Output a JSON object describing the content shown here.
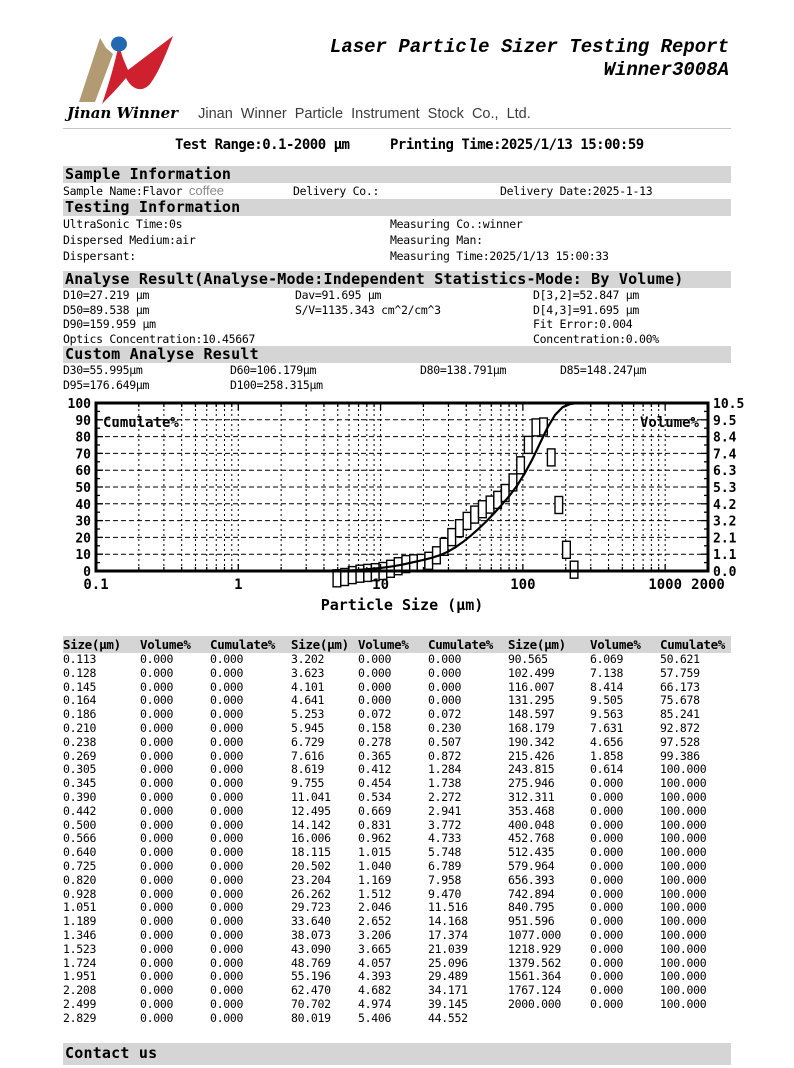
{
  "header": {
    "title_line1": "Laser Particle Sizer Testing Report",
    "title_line2": "Winner3008A",
    "logo_caption": "Jinan Winner",
    "company": "Jinan Winner Particle Instrument Stock Co., Ltd.",
    "logo_colors": {
      "blue": "#2268b2",
      "red": "#cf2030",
      "tan": "#b29b72"
    }
  },
  "meta": {
    "test_range": "Test Range:0.1-2000 μm",
    "printing_time": "Printing Time:2025/1/13 15:00:59"
  },
  "sample_info": {
    "heading": "Sample Information",
    "sample_name_label": "Sample Name:Flavor",
    "sample_name_value": "coffee",
    "delivery_co": "Delivery Co.:",
    "delivery_date": "Delivery Date:2025-1-13"
  },
  "testing_info": {
    "heading": "Testing Information",
    "left": [
      "UltraSonic Time:0s",
      "Dispersed Medium:air",
      "Dispersant:"
    ],
    "right": [
      "Measuring Co.:winner",
      "Measuring Man:",
      "Measuring Time:2025/1/13 15:00:33"
    ]
  },
  "analyse_result": {
    "heading": "Analyse Result(Analyse-Mode:Independent  Statistics-Mode: By Volume)",
    "rows": [
      [
        "D10=27.219 μm",
        "Dav=91.695 μm",
        "D[3,2]=52.847 μm"
      ],
      [
        "D50=89.538 μm",
        "S/V=1135.343 cm^2/cm^3",
        "D[4,3]=91.695 μm"
      ],
      [
        "D90=159.959 μm",
        "",
        "Fit Error:0.004"
      ],
      [
        "Optics Concentration:10.45667",
        "",
        "Concentration:0.00%"
      ]
    ]
  },
  "custom_result": {
    "heading": "Custom Analyse Result",
    "rows": [
      [
        "D30=55.995μm",
        "D60=106.179μm",
        "D80=138.791μm",
        "D85=148.247μm"
      ],
      [
        "D95=176.649μm",
        "D100=258.315μm",
        "",
        ""
      ]
    ]
  },
  "chart_data": {
    "type": "bar",
    "title": "",
    "xlabel": "Particle Size (μm)",
    "x_scale": "log",
    "x_range": [
      0.1,
      2000
    ],
    "x_tick_labels": [
      "0.1",
      "1",
      "10",
      "100",
      "1000",
      "2000"
    ],
    "grid": "dashed",
    "left_axis": {
      "label": "Cumulate%",
      "range": [
        0,
        100
      ],
      "ticks": [
        0,
        10,
        20,
        30,
        40,
        50,
        60,
        70,
        80,
        90,
        100
      ]
    },
    "right_axis": {
      "label": "Volume%",
      "range": [
        0,
        10.5
      ],
      "tick_labels": [
        "10.5",
        "9.5",
        "8.4",
        "7.4",
        "6.3",
        "5.3",
        "4.2",
        "3.2",
        "2.1",
        "1.1",
        "0.0"
      ]
    },
    "x": [
      0.113,
      0.128,
      0.145,
      0.164,
      0.186,
      0.21,
      0.238,
      0.269,
      0.305,
      0.345,
      0.39,
      0.442,
      0.5,
      0.566,
      0.64,
      0.725,
      0.82,
      0.928,
      1.051,
      1.189,
      1.346,
      1.523,
      1.724,
      1.951,
      2.208,
      2.499,
      2.829,
      3.202,
      3.623,
      4.101,
      4.641,
      5.253,
      5.945,
      6.729,
      7.616,
      8.619,
      9.755,
      11.041,
      12.495,
      14.142,
      16.006,
      18.115,
      20.502,
      23.204,
      26.262,
      29.723,
      33.64,
      38.073,
      43.09,
      48.769,
      55.196,
      62.47,
      70.702,
      80.019,
      90.565,
      102.499,
      116.007,
      131.295,
      148.597,
      168.179,
      190.342,
      215.426,
      243.815,
      275.946,
      312.311,
      353.468,
      400.048,
      452.768,
      512.435,
      579.964,
      656.393,
      742.894,
      840.795,
      951.596,
      1077.0,
      1218.929,
      1379.562,
      1561.364,
      1767.124,
      2000.0
    ],
    "series": [
      {
        "name": "Volume%",
        "type": "bar",
        "axis": "right",
        "values": [
          0,
          0,
          0,
          0,
          0,
          0,
          0,
          0,
          0,
          0,
          0,
          0,
          0,
          0,
          0,
          0,
          0,
          0,
          0,
          0,
          0,
          0,
          0,
          0,
          0,
          0,
          0,
          0,
          0,
          0,
          0,
          0.072,
          0.158,
          0.278,
          0.365,
          0.412,
          0.454,
          0.534,
          0.669,
          0.831,
          0.962,
          1.015,
          1.04,
          1.169,
          1.512,
          2.046,
          2.652,
          3.206,
          3.665,
          4.057,
          4.393,
          4.682,
          4.974,
          5.406,
          6.069,
          7.138,
          8.414,
          9.505,
          9.563,
          7.631,
          4.656,
          1.858,
          0.614,
          0,
          0,
          0,
          0,
          0,
          0,
          0,
          0,
          0,
          0,
          0,
          0,
          0,
          0,
          0,
          0,
          0
        ]
      },
      {
        "name": "Cumulate%",
        "type": "line",
        "axis": "left",
        "values": [
          0,
          0,
          0,
          0,
          0,
          0,
          0,
          0,
          0,
          0,
          0,
          0,
          0,
          0,
          0,
          0,
          0,
          0,
          0,
          0,
          0,
          0,
          0,
          0,
          0,
          0,
          0,
          0,
          0,
          0,
          0,
          0.072,
          0.23,
          0.507,
          0.872,
          1.284,
          1.738,
          2.272,
          2.941,
          3.772,
          4.733,
          5.748,
          6.789,
          7.958,
          9.47,
          11.516,
          14.168,
          17.374,
          21.039,
          25.096,
          29.489,
          34.171,
          39.145,
          44.552,
          50.621,
          57.759,
          66.173,
          75.678,
          85.241,
          92.872,
          97.528,
          99.386,
          100,
          100,
          100,
          100,
          100,
          100,
          100,
          100,
          100,
          100,
          100,
          100,
          100,
          100,
          100,
          100,
          100,
          100
        ]
      }
    ]
  },
  "table": {
    "headers": [
      "Size(μm)",
      "Volume%",
      "Cumulate%",
      "Size(μm)",
      "Volume%",
      "Cumulate%",
      "Size(μm)",
      "Volume%",
      "Cumulate%"
    ],
    "groups": [
      {
        "rows": [
          [
            "0.113",
            "0.000",
            "0.000"
          ],
          [
            "0.128",
            "0.000",
            "0.000"
          ],
          [
            "0.145",
            "0.000",
            "0.000"
          ],
          [
            "0.164",
            "0.000",
            "0.000"
          ],
          [
            "0.186",
            "0.000",
            "0.000"
          ],
          [
            "0.210",
            "0.000",
            "0.000"
          ],
          [
            "0.238",
            "0.000",
            "0.000"
          ],
          [
            "0.269",
            "0.000",
            "0.000"
          ],
          [
            "0.305",
            "0.000",
            "0.000"
          ],
          [
            "0.345",
            "0.000",
            "0.000"
          ],
          [
            "0.390",
            "0.000",
            "0.000"
          ],
          [
            "0.442",
            "0.000",
            "0.000"
          ],
          [
            "0.500",
            "0.000",
            "0.000"
          ],
          [
            "0.566",
            "0.000",
            "0.000"
          ],
          [
            "0.640",
            "0.000",
            "0.000"
          ],
          [
            "0.725",
            "0.000",
            "0.000"
          ],
          [
            "0.820",
            "0.000",
            "0.000"
          ],
          [
            "0.928",
            "0.000",
            "0.000"
          ],
          [
            "1.051",
            "0.000",
            "0.000"
          ],
          [
            "1.189",
            "0.000",
            "0.000"
          ],
          [
            "1.346",
            "0.000",
            "0.000"
          ],
          [
            "1.523",
            "0.000",
            "0.000"
          ],
          [
            "1.724",
            "0.000",
            "0.000"
          ],
          [
            "1.951",
            "0.000",
            "0.000"
          ],
          [
            "2.208",
            "0.000",
            "0.000"
          ],
          [
            "2.499",
            "0.000",
            "0.000"
          ],
          [
            "2.829",
            "0.000",
            "0.000"
          ]
        ]
      },
      {
        "rows": [
          [
            "3.202",
            "0.000",
            "0.000"
          ],
          [
            "3.623",
            "0.000",
            "0.000"
          ],
          [
            "4.101",
            "0.000",
            "0.000"
          ],
          [
            "4.641",
            "0.000",
            "0.000"
          ],
          [
            "5.253",
            "0.072",
            "0.072"
          ],
          [
            "5.945",
            "0.158",
            "0.230"
          ],
          [
            "6.729",
            "0.278",
            "0.507"
          ],
          [
            "7.616",
            "0.365",
            "0.872"
          ],
          [
            "8.619",
            "0.412",
            "1.284"
          ],
          [
            "9.755",
            "0.454",
            "1.738"
          ],
          [
            "11.041",
            "0.534",
            "2.272"
          ],
          [
            "12.495",
            "0.669",
            "2.941"
          ],
          [
            "14.142",
            "0.831",
            "3.772"
          ],
          [
            "16.006",
            "0.962",
            "4.733"
          ],
          [
            "18.115",
            "1.015",
            "5.748"
          ],
          [
            "20.502",
            "1.040",
            "6.789"
          ],
          [
            "23.204",
            "1.169",
            "7.958"
          ],
          [
            "26.262",
            "1.512",
            "9.470"
          ],
          [
            "29.723",
            "2.046",
            "11.516"
          ],
          [
            "33.640",
            "2.652",
            "14.168"
          ],
          [
            "38.073",
            "3.206",
            "17.374"
          ],
          [
            "43.090",
            "3.665",
            "21.039"
          ],
          [
            "48.769",
            "4.057",
            "25.096"
          ],
          [
            "55.196",
            "4.393",
            "29.489"
          ],
          [
            "62.470",
            "4.682",
            "34.171"
          ],
          [
            "70.702",
            "4.974",
            "39.145"
          ],
          [
            "80.019",
            "5.406",
            "44.552"
          ]
        ]
      },
      {
        "rows": [
          [
            "90.565",
            "6.069",
            "50.621"
          ],
          [
            "102.499",
            "7.138",
            "57.759"
          ],
          [
            "116.007",
            "8.414",
            "66.173"
          ],
          [
            "131.295",
            "9.505",
            "75.678"
          ],
          [
            "148.597",
            "9.563",
            "85.241"
          ],
          [
            "168.179",
            "7.631",
            "92.872"
          ],
          [
            "190.342",
            "4.656",
            "97.528"
          ],
          [
            "215.426",
            "1.858",
            "99.386"
          ],
          [
            "243.815",
            "0.614",
            "100.000"
          ],
          [
            "275.946",
            "0.000",
            "100.000"
          ],
          [
            "312.311",
            "0.000",
            "100.000"
          ],
          [
            "353.468",
            "0.000",
            "100.000"
          ],
          [
            "400.048",
            "0.000",
            "100.000"
          ],
          [
            "452.768",
            "0.000",
            "100.000"
          ],
          [
            "512.435",
            "0.000",
            "100.000"
          ],
          [
            "579.964",
            "0.000",
            "100.000"
          ],
          [
            "656.393",
            "0.000",
            "100.000"
          ],
          [
            "742.894",
            "0.000",
            "100.000"
          ],
          [
            "840.795",
            "0.000",
            "100.000"
          ],
          [
            "951.596",
            "0.000",
            "100.000"
          ],
          [
            "1077.000",
            "0.000",
            "100.000"
          ],
          [
            "1218.929",
            "0.000",
            "100.000"
          ],
          [
            "1379.562",
            "0.000",
            "100.000"
          ],
          [
            "1561.364",
            "0.000",
            "100.000"
          ],
          [
            "1767.124",
            "0.000",
            "100.000"
          ],
          [
            "2000.000",
            "0.000",
            "100.000"
          ]
        ]
      }
    ]
  },
  "footer": {
    "heading": "Contact us"
  }
}
